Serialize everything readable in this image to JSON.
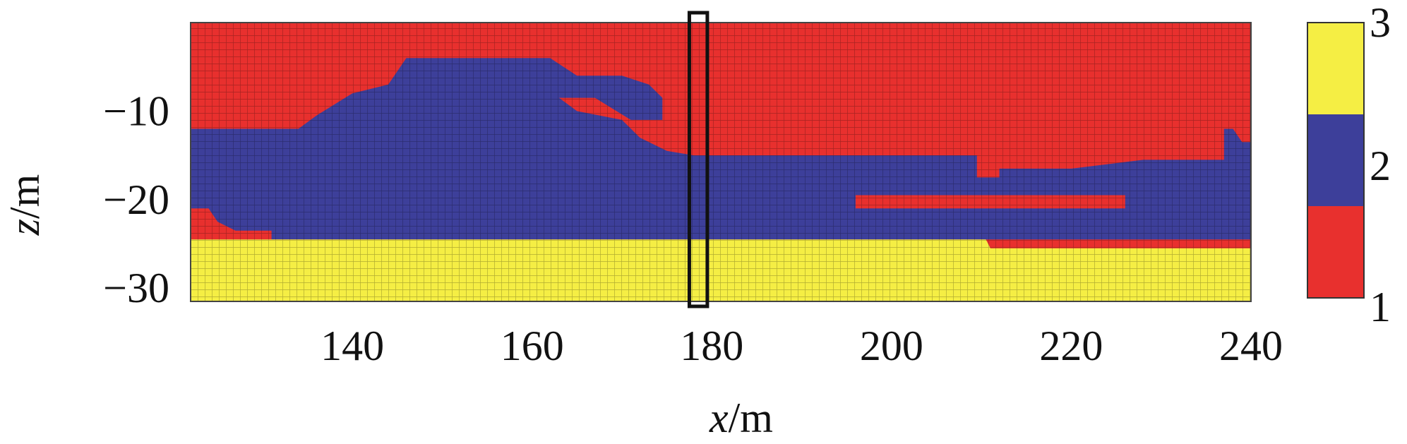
{
  "chart_data": {
    "type": "heatmap",
    "title": "",
    "xlabel": "",
    "ylabel": "",
    "xlabel_var": "x",
    "xlabel_unit": "/m",
    "ylabel_var": "z",
    "ylabel_unit": "/m",
    "xlim": [
      122,
      240
    ],
    "ylim": [
      -31.5,
      0
    ],
    "x_ticks": [
      140,
      160,
      180,
      200,
      220,
      240
    ],
    "y_ticks": [
      -10,
      -20,
      -30
    ],
    "grid": true,
    "colorbar": {
      "placement": "right",
      "levels": [
        1,
        2,
        3
      ],
      "tick_labels": [
        "1",
        "2",
        "3"
      ],
      "colors": {
        "1": "#e8302e",
        "2": "#3d3f9a",
        "3": "#f5ee44"
      }
    },
    "highlight_column": {
      "x_start": 177.5,
      "x_end": 179.5
    },
    "regions": [
      {
        "class": 1,
        "description_free": true,
        "boundary_top": [
          [
            122,
            0
          ],
          [
            240,
            0
          ]
        ]
      },
      {
        "class": 2,
        "polygon": [
          [
            122,
            -12
          ],
          [
            134,
            -12
          ],
          [
            136,
            -10.5
          ],
          [
            140,
            -8
          ],
          [
            144,
            -7
          ],
          [
            146,
            -4
          ],
          [
            162,
            -4
          ],
          [
            165,
            -6
          ],
          [
            170,
            -6
          ],
          [
            173,
            -7
          ],
          [
            174.5,
            -8.5
          ],
          [
            174.5,
            -11
          ],
          [
            171,
            -11
          ],
          [
            167,
            -8.5
          ],
          [
            163,
            -8.5
          ],
          [
            165,
            -10
          ],
          [
            170,
            -11
          ],
          [
            172,
            -13
          ],
          [
            175,
            -14.5
          ],
          [
            178,
            -15
          ],
          [
            196,
            -15
          ],
          [
            209.5,
            -15
          ],
          [
            209.5,
            -17.5
          ],
          [
            212,
            -17.5
          ],
          [
            212,
            -16.5
          ],
          [
            220,
            -16.5
          ],
          [
            228,
            -15.5
          ],
          [
            237,
            -15.5
          ],
          [
            237,
            -12
          ],
          [
            238,
            -12
          ],
          [
            239,
            -13.5
          ],
          [
            240,
            -13.5
          ],
          [
            240,
            -24.5
          ],
          [
            122,
            -24.5
          ]
        ]
      },
      {
        "class": 1,
        "polygon": [
          [
            196,
            -19.5
          ],
          [
            226,
            -19.5
          ],
          [
            226,
            -21
          ],
          [
            196,
            -21
          ]
        ]
      },
      {
        "class": 1,
        "polygon": [
          [
            122,
            -21
          ],
          [
            124,
            -21
          ],
          [
            125,
            -22.5
          ],
          [
            127,
            -23.5
          ],
          [
            131,
            -23.5
          ],
          [
            131,
            -24.5
          ],
          [
            122,
            -24.5
          ]
        ]
      },
      {
        "class": 3,
        "polygon": [
          [
            122,
            -24.5
          ],
          [
            210.5,
            -24.5
          ],
          [
            211,
            -25.5
          ],
          [
            240,
            -25.5
          ],
          [
            240,
            -31.5
          ],
          [
            122,
            -31.5
          ]
        ]
      }
    ]
  }
}
